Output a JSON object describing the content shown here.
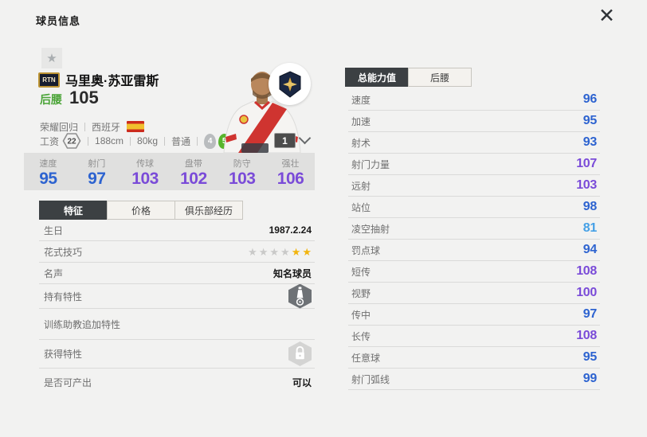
{
  "header": {
    "title": "球员信息"
  },
  "icons": {
    "star": "★",
    "close": "✕"
  },
  "player": {
    "badge": "RTN",
    "name": "马里奥·苏亚雷斯",
    "position": "后腰",
    "overall": "105",
    "tags": [
      "荣耀回归",
      "西班牙"
    ],
    "salary_label": "工资",
    "salary": "22",
    "height": "188cm",
    "weight": "80kg",
    "body": "普通",
    "weak_foot": "4",
    "strong_foot": "5",
    "card_level": "1"
  },
  "summary_stats": [
    {
      "label": "速度",
      "value": "95",
      "tier": "blue"
    },
    {
      "label": "射门",
      "value": "97",
      "tier": "blue"
    },
    {
      "label": "传球",
      "value": "103",
      "tier": "purple"
    },
    {
      "label": "盘带",
      "value": "102",
      "tier": "purple"
    },
    {
      "label": "防守",
      "value": "103",
      "tier": "purple"
    },
    {
      "label": "强壮",
      "value": "106",
      "tier": "purple"
    }
  ],
  "left_tabs": [
    {
      "label": "特征",
      "active": true
    },
    {
      "label": "价格",
      "active": false
    },
    {
      "label": "俱乐部经历",
      "active": false
    }
  ],
  "detail_rows": [
    {
      "label": "生日",
      "type": "text",
      "value": "1987.2.24"
    },
    {
      "label": "花式技巧",
      "type": "stars",
      "gray_stars": 4,
      "gold_stars": 2
    },
    {
      "label": "名声",
      "type": "text",
      "value": "知名球员"
    },
    {
      "label": "持有特性",
      "type": "trait"
    },
    {
      "label": "训练助教追加特性",
      "type": "empty"
    },
    {
      "label": "获得特性",
      "type": "locked"
    },
    {
      "label": "是否可产出",
      "type": "text",
      "value": "可以"
    }
  ],
  "right_tabs": [
    {
      "label": "总能力值",
      "active": true
    },
    {
      "label": "后腰",
      "active": false
    }
  ],
  "ability_stats": [
    {
      "label": "速度",
      "value": "96",
      "tier": "blue"
    },
    {
      "label": "加速",
      "value": "95",
      "tier": "blue"
    },
    {
      "label": "射术",
      "value": "93",
      "tier": "blue"
    },
    {
      "label": "射门力量",
      "value": "107",
      "tier": "purple"
    },
    {
      "label": "远射",
      "value": "103",
      "tier": "purple"
    },
    {
      "label": "站位",
      "value": "98",
      "tier": "blue"
    },
    {
      "label": "凌空抽射",
      "value": "81",
      "tier": "lightblue"
    },
    {
      "label": "罚点球",
      "value": "94",
      "tier": "blue"
    },
    {
      "label": "短传",
      "value": "108",
      "tier": "purple"
    },
    {
      "label": "视野",
      "value": "100",
      "tier": "purple"
    },
    {
      "label": "传中",
      "value": "97",
      "tier": "blue"
    },
    {
      "label": "长传",
      "value": "108",
      "tier": "purple"
    },
    {
      "label": "任意球",
      "value": "95",
      "tier": "blue"
    },
    {
      "label": "射门弧线",
      "value": "99",
      "tier": "blue"
    }
  ],
  "colors": {
    "blue": "#2d63d0",
    "purple": "#7a4bd8",
    "lightblue": "#45a0e6",
    "position_green": "#4aa437",
    "flag_red": "#cc2b1d",
    "flag_yellow": "#f1c02e",
    "gold_star": "#f2b50f"
  }
}
